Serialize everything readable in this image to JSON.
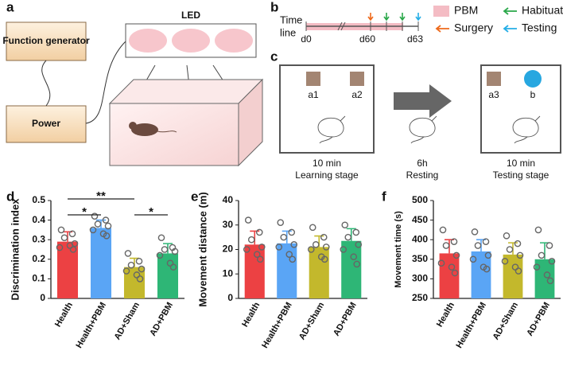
{
  "panel_a": {
    "label": "a",
    "function_generator": "Function generator",
    "power": "Power",
    "led": "LED"
  },
  "panel_b": {
    "label": "b",
    "timeline_label": [
      "Time",
      "line"
    ],
    "days": [
      "d0",
      "d60",
      "d63"
    ],
    "legend": [
      {
        "label": "PBM",
        "color": "#f4bcc4"
      },
      {
        "label": "Habituation",
        "color": "#2aa84a"
      },
      {
        "label": "Surgery",
        "color": "#ee6a1c"
      },
      {
        "label": "Testing",
        "color": "#25aee6"
      }
    ]
  },
  "panel_c": {
    "label": "c",
    "objects": [
      "a1",
      "a2",
      "a3",
      "b"
    ],
    "stages": [
      {
        "duration": "10 min",
        "name": "Learning stage"
      },
      {
        "duration": "6h",
        "name": "Resting"
      },
      {
        "duration": "10 min",
        "name": "Testing stage"
      }
    ]
  },
  "chart_data": [
    {
      "type": "bar",
      "panel": "d",
      "ylabel": "Discrimination index",
      "categories": [
        "Health",
        "Health+PBM",
        "AD+Sham",
        "AD+PBM"
      ],
      "colors": [
        "#ec4143",
        "#5aa5f5",
        "#c3b82c",
        "#2eb676"
      ],
      "values": [
        0.29,
        0.36,
        0.16,
        0.23
      ],
      "errors": [
        0.05,
        0.04,
        0.045,
        0.05
      ],
      "points": [
        [
          0.35,
          0.33,
          0.31,
          0.28,
          0.26,
          0.27,
          0.25
        ],
        [
          0.42,
          0.4,
          0.38,
          0.37,
          0.35,
          0.33,
          0.32
        ],
        [
          0.23,
          0.19,
          0.17,
          0.15,
          0.14,
          0.12,
          0.1
        ],
        [
          0.31,
          0.26,
          0.25,
          0.24,
          0.22,
          0.18,
          0.16
        ]
      ],
      "ylim": [
        0,
        0.5
      ],
      "yticks": [
        0,
        0.1,
        0.2,
        0.3,
        0.4,
        0.5
      ],
      "significance": [
        {
          "label": "*",
          "between": [
            "Health",
            "Health+PBM"
          ]
        },
        {
          "label": "**",
          "between": [
            "Health",
            "AD+Sham"
          ]
        },
        {
          "label": "*",
          "between": [
            "AD+Sham",
            "AD+PBM"
          ]
        }
      ]
    },
    {
      "type": "bar",
      "panel": "e",
      "ylabel": "Movement distance (m)",
      "categories": [
        "Health",
        "Health+PBM",
        "AD+Sham",
        "AD+PBM"
      ],
      "colors": [
        "#ec4143",
        "#5aa5f5",
        "#c3b82c",
        "#2eb676"
      ],
      "values": [
        22,
        22.5,
        21,
        23.5
      ],
      "errors": [
        5.5,
        5,
        4.5,
        5
      ],
      "points": [
        [
          32,
          27,
          24,
          21,
          20,
          18,
          16
        ],
        [
          31,
          27,
          25,
          22,
          21,
          18,
          16
        ],
        [
          29,
          25,
          22,
          21,
          20,
          17,
          16
        ],
        [
          30,
          27,
          25,
          22,
          20,
          17,
          14
        ]
      ],
      "ylim": [
        0,
        40
      ],
      "yticks": [
        0,
        10,
        20,
        30,
        40
      ]
    },
    {
      "type": "bar",
      "panel": "f",
      "ylabel": "Movement time (s)",
      "categories": [
        "Health",
        "Health+PBM",
        "AD+Sham",
        "AD+PBM"
      ],
      "colors": [
        "#ec4143",
        "#5aa5f5",
        "#c3b82c",
        "#2eb676"
      ],
      "values": [
        365,
        370,
        362,
        350
      ],
      "errors": [
        35,
        30,
        30,
        42
      ],
      "points": [
        [
          425,
          395,
          385,
          360,
          340,
          330,
          315
        ],
        [
          420,
          395,
          385,
          360,
          350,
          330,
          325
        ],
        [
          410,
          390,
          375,
          360,
          345,
          330,
          320
        ],
        [
          425,
          385,
          360,
          345,
          330,
          310,
          295
        ]
      ],
      "ylim": [
        250,
        500
      ],
      "yticks": [
        250,
        300,
        350,
        400,
        450,
        500
      ]
    }
  ]
}
